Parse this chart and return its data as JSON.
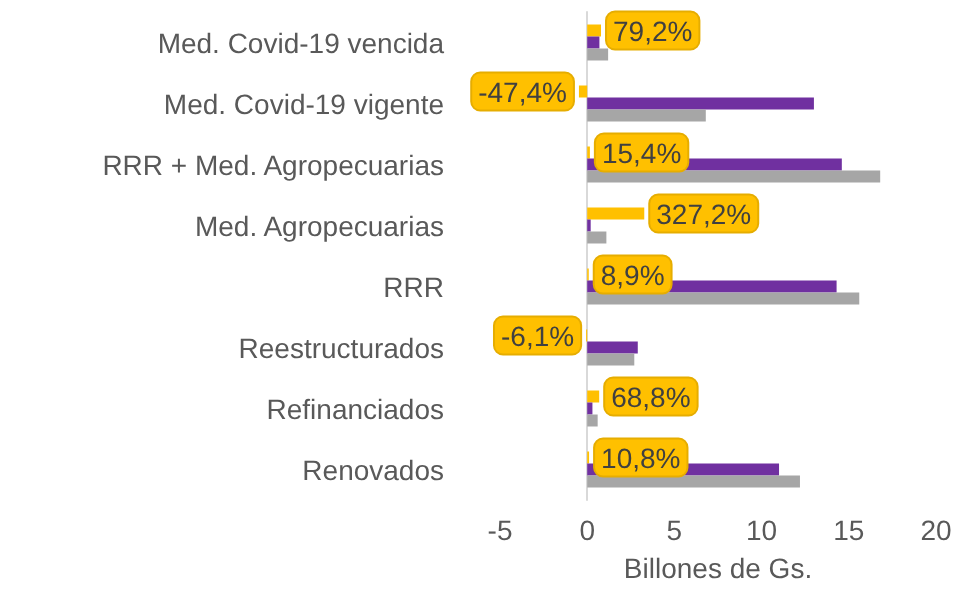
{
  "chart_data": {
    "type": "bar",
    "orientation": "horizontal",
    "xlabel": "Billones de Gs.",
    "categories": [
      "Med. Covid-19 vencida",
      "Med. Covid-19 vigente",
      "RRR + Med. Agropecuarias",
      "Med. Agropecuarias",
      "RRR",
      "Reestructurados",
      "Refinanciados",
      "Renovados"
    ],
    "series": [
      {
        "color": "#ffc000",
        "values": [
          0.792,
          -0.474,
          0.154,
          3.272,
          0.089,
          -0.061,
          0.688,
          0.108
        ],
        "value_labels": [
          "79,2%",
          "-47,4%",
          "15,4%",
          "327,2%",
          "8,9%",
          "-6,1%",
          "68,8%",
          "10,8%"
        ]
      },
      {
        "color": "#7030a0",
        "values": [
          0.7,
          13.0,
          14.6,
          0.2,
          14.3,
          2.9,
          0.3,
          11.0
        ]
      },
      {
        "color": "#a6a6a6",
        "values": [
          1.2,
          6.8,
          16.8,
          1.1,
          15.6,
          2.7,
          0.6,
          12.2
        ]
      }
    ],
    "xlim": [
      -5,
      20
    ],
    "xticks": [
      -5,
      0,
      5,
      10,
      15,
      20
    ]
  }
}
